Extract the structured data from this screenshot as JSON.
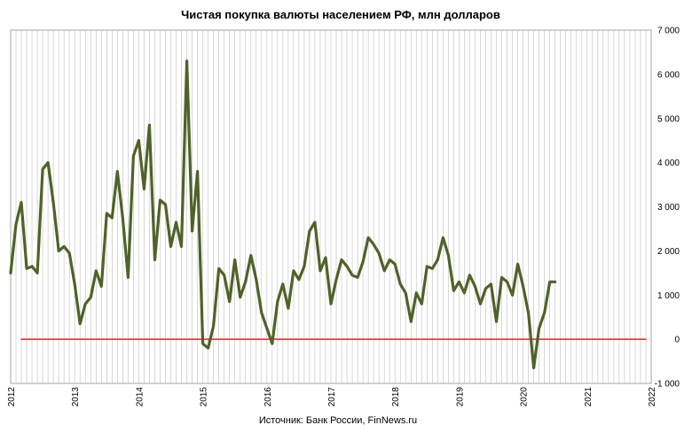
{
  "chart_data": {
    "type": "line",
    "title": "Чистая покупка валюты населением РФ, млн долларов",
    "source": "Источник: Банк России, FinNews.ru",
    "xlabel": "",
    "ylabel": "",
    "ylim": [
      -1000,
      7000
    ],
    "y_ticks": [
      -1000,
      0,
      1000,
      2000,
      3000,
      4000,
      5000,
      6000,
      7000
    ],
    "y_tick_labels": [
      "-1 000",
      "0",
      "1 000",
      "2 000",
      "3 000",
      "4 000",
      "5 000",
      "6 000",
      "7 000"
    ],
    "xlim": [
      2012,
      2022
    ],
    "x_tick_labels": [
      "2012",
      "2013",
      "2014",
      "2015",
      "2016",
      "2017",
      "2018",
      "2019",
      "2020",
      "2021",
      "2022"
    ],
    "grid": "vertical-monthly",
    "series": [
      {
        "color": "#4f6228",
        "x": [
          "2012-01",
          "2012-02",
          "2012-03",
          "2012-04",
          "2012-05",
          "2012-06",
          "2012-07",
          "2012-08",
          "2012-09",
          "2012-10",
          "2012-11",
          "2012-12",
          "2013-01",
          "2013-02",
          "2013-03",
          "2013-04",
          "2013-05",
          "2013-06",
          "2013-07",
          "2013-08",
          "2013-09",
          "2013-10",
          "2013-11",
          "2013-12",
          "2014-01",
          "2014-02",
          "2014-03",
          "2014-04",
          "2014-05",
          "2014-06",
          "2014-07",
          "2014-08",
          "2014-09",
          "2014-10",
          "2014-11",
          "2014-12",
          "2015-01",
          "2015-02",
          "2015-03",
          "2015-04",
          "2015-05",
          "2015-06",
          "2015-07",
          "2015-08",
          "2015-09",
          "2015-10",
          "2015-11",
          "2015-12",
          "2016-01",
          "2016-02",
          "2016-03",
          "2016-04",
          "2016-05",
          "2016-06",
          "2016-07",
          "2016-08",
          "2016-09",
          "2016-10",
          "2016-11",
          "2016-12",
          "2017-01",
          "2017-02",
          "2017-03",
          "2017-04",
          "2017-05",
          "2017-06",
          "2017-07",
          "2017-08",
          "2017-09",
          "2017-10",
          "2017-11",
          "2017-12",
          "2018-01",
          "2018-02",
          "2018-03",
          "2018-04",
          "2018-05",
          "2018-06",
          "2018-07",
          "2018-08",
          "2018-09",
          "2018-10",
          "2018-11",
          "2018-12",
          "2019-01",
          "2019-02",
          "2019-03",
          "2019-04",
          "2019-05",
          "2019-06",
          "2019-07",
          "2019-08",
          "2019-09",
          "2019-10",
          "2019-11",
          "2019-12",
          "2020-01",
          "2020-02",
          "2020-03",
          "2020-04",
          "2020-05",
          "2020-06",
          "2020-07"
        ],
        "values": [
          1500,
          2600,
          3100,
          1600,
          1650,
          1500,
          3850,
          4000,
          3100,
          2000,
          2100,
          1950,
          1250,
          350,
          800,
          950,
          1550,
          1200,
          2850,
          2750,
          3800,
          2750,
          1400,
          4150,
          4500,
          3400,
          4850,
          1800,
          3150,
          3050,
          2100,
          2650,
          2100,
          6300,
          2450,
          3800,
          -100,
          -200,
          300,
          1600,
          1450,
          850,
          1800,
          950,
          1300,
          1900,
          1350,
          600,
          250,
          -100,
          850,
          1250,
          700,
          1550,
          1350,
          1650,
          2450,
          2650,
          1550,
          1850,
          800,
          1350,
          1800,
          1650,
          1450,
          1400,
          1750,
          2300,
          2150,
          1950,
          1550,
          1800,
          1700,
          1250,
          1050,
          400,
          1050,
          800,
          1650,
          1600,
          1800,
          2300,
          1900,
          1100,
          1300,
          1050,
          1450,
          1200,
          800,
          1150,
          1250,
          400,
          1400,
          1300,
          1000,
          1700,
          1200,
          600,
          -650,
          250,
          600,
          1300,
          1300
        ]
      },
      {
        "color": "#e0241e",
        "x": [
          "2012-03",
          "2021-12"
        ],
        "values": [
          0,
          0
        ]
      }
    ]
  }
}
